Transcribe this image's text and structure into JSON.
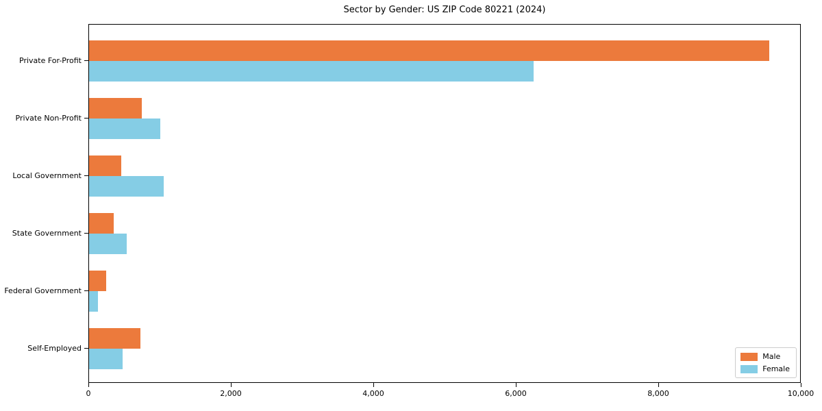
{
  "chart_data": {
    "type": "bar",
    "orientation": "horizontal",
    "title": "Sector by Gender: US ZIP Code 80221 (2024)",
    "categories": [
      "Private For-Profit",
      "Private Non-Profit",
      "Local Government",
      "State Government",
      "Federal Government",
      "Self-Employed"
    ],
    "series": [
      {
        "name": "Male",
        "color": "#ec7a3c",
        "values": [
          9550,
          740,
          450,
          350,
          240,
          720
        ]
      },
      {
        "name": "Female",
        "color": "#85cde5",
        "values": [
          6240,
          1000,
          1050,
          530,
          120,
          470
        ]
      }
    ],
    "xlim": [
      0,
      10000
    ],
    "xticks": [
      0,
      2000,
      4000,
      6000,
      8000,
      10000
    ],
    "xtick_labels": [
      "0",
      "2,000",
      "4,000",
      "6,000",
      "8,000",
      "10,000"
    ],
    "ylabel": "",
    "xlabel": "",
    "grid": false,
    "legend": {
      "position": "lower-right"
    },
    "colors": {
      "axis": "#000000",
      "background": "#ffffff",
      "legend_border": "#cccccc"
    }
  }
}
